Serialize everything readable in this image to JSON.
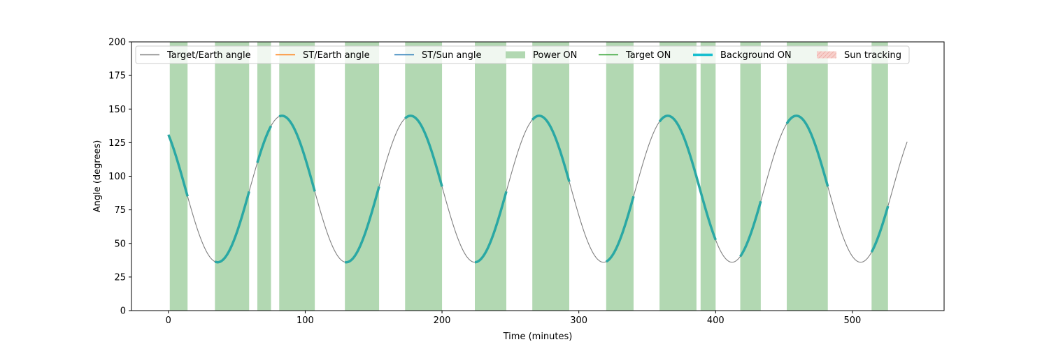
{
  "chart_data": {
    "type": "line",
    "title": "",
    "xlabel": "Time (minutes)",
    "ylabel": "Angle (degrees)",
    "xlim": [
      -27,
      567
    ],
    "ylim": [
      0,
      200
    ],
    "xticks": [
      0,
      100,
      200,
      300,
      400,
      500
    ],
    "yticks": [
      0,
      25,
      50,
      75,
      100,
      125,
      150,
      175,
      200
    ],
    "grid": false,
    "legend_position": "top",
    "colors": {
      "target_earth": "#808080",
      "st_earth": "#ff7f0e",
      "st_sun": "#1f77b4",
      "power_on": "#b2d8b2",
      "target_on": "#2ca02c",
      "background_on": "#2aa8a4",
      "background_on_legend": "#17becf",
      "sun_tracking": "#f7d0cc"
    },
    "legend": [
      {
        "key": "target_earth",
        "label": "Target/Earth angle",
        "kind": "line"
      },
      {
        "key": "st_earth",
        "label": "ST/Earth angle",
        "kind": "line"
      },
      {
        "key": "st_sun",
        "label": "ST/Sun angle",
        "kind": "line"
      },
      {
        "key": "power_on",
        "label": "Power ON",
        "kind": "patch"
      },
      {
        "key": "target_on",
        "label": "Target ON",
        "kind": "line"
      },
      {
        "key": "background_on",
        "label": "Background ON",
        "kind": "thickline"
      },
      {
        "key": "sun_tracking",
        "label": "Sun tracking",
        "kind": "hatchpatch"
      }
    ],
    "target_earth_model": {
      "mean": 90.5,
      "amplitude": 54.5,
      "period_min": 94,
      "min_at_min": 36,
      "x_start": 0,
      "x_end": 540
    },
    "power_on_intervals": [
      [
        1,
        14
      ],
      [
        34,
        59
      ],
      [
        65,
        75
      ],
      [
        81,
        107
      ],
      [
        129,
        154
      ],
      [
        173,
        200
      ],
      [
        224,
        247
      ],
      [
        266,
        293
      ],
      [
        320,
        340
      ],
      [
        359,
        386
      ],
      [
        389,
        400
      ],
      [
        418,
        433
      ],
      [
        452,
        482
      ],
      [
        514,
        526
      ]
    ],
    "background_on_intervals": [
      [
        0,
        14
      ],
      [
        34,
        59
      ],
      [
        65,
        75
      ],
      [
        81,
        107
      ],
      [
        129,
        154
      ],
      [
        173,
        200
      ],
      [
        224,
        247
      ],
      [
        266,
        293
      ],
      [
        320,
        340
      ],
      [
        359,
        386
      ],
      [
        386,
        400
      ],
      [
        418,
        433
      ],
      [
        452,
        482
      ],
      [
        514,
        526
      ]
    ]
  }
}
